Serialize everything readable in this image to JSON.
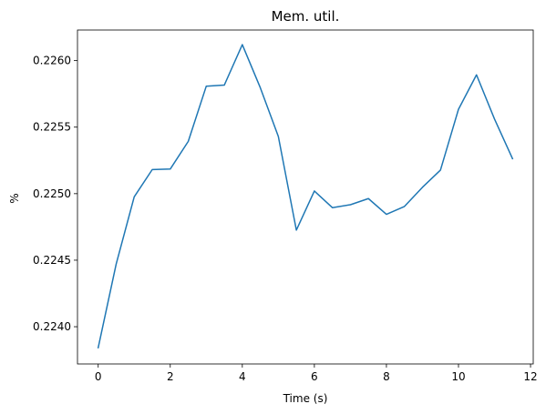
{
  "chart_data": {
    "type": "line",
    "title": "Mem. util.",
    "xlabel": "Time (s)",
    "ylabel": "%",
    "xlim": [
      -0.575,
      12.075
    ],
    "ylim": [
      0.22372,
      0.22623
    ],
    "xticks": [
      0,
      2,
      4,
      6,
      8,
      10,
      12
    ],
    "xtick_labels": [
      "0",
      "2",
      "4",
      "6",
      "8",
      "10",
      "12"
    ],
    "yticks": [
      0.224,
      0.2245,
      0.225,
      0.2255,
      0.226
    ],
    "ytick_labels": [
      "0.2240",
      "0.2245",
      "0.2250",
      "0.2255",
      "0.2260"
    ],
    "grid": false,
    "series": [
      {
        "color": "#1f77b4",
        "x": [
          0,
          0.5,
          1,
          1.5,
          2,
          2.5,
          3,
          3.5,
          4,
          4.5,
          5,
          5.5,
          6,
          6.5,
          7,
          7.5,
          8,
          8.5,
          9,
          9.5,
          10,
          10.5,
          11,
          11.5
        ],
        "y": [
          0.223842,
          0.224472,
          0.224976,
          0.225181,
          0.225185,
          0.225393,
          0.225808,
          0.225816,
          0.22612,
          0.225796,
          0.22543,
          0.224726,
          0.22502,
          0.224895,
          0.224917,
          0.224963,
          0.224845,
          0.224904,
          0.225048,
          0.225177,
          0.225634,
          0.225893,
          0.225561,
          0.225263
        ]
      }
    ]
  }
}
